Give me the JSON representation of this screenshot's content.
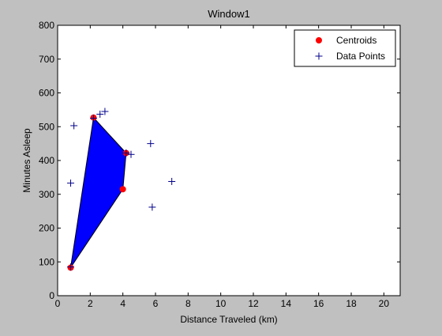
{
  "chart_data": {
    "type": "scatter",
    "title": "Window1",
    "xlabel": "Distance Traveled (km)",
    "ylabel": "Minutes Asleep",
    "xlim": [
      0,
      21
    ],
    "ylim": [
      0,
      800
    ],
    "xticks": [
      0,
      2,
      4,
      6,
      8,
      10,
      12,
      14,
      16,
      18,
      20
    ],
    "yticks": [
      0,
      100,
      200,
      300,
      400,
      500,
      600,
      700,
      800
    ],
    "grid": false,
    "legend_position": "top-right",
    "polygon": {
      "color": "#0000ff",
      "points": [
        [
          0.8,
          83
        ],
        [
          2.2,
          527
        ],
        [
          4.2,
          422
        ],
        [
          4.0,
          315
        ]
      ]
    },
    "series": [
      {
        "name": "Centroids",
        "marker": "circle",
        "color": "#ff0000",
        "points": [
          [
            0.8,
            83
          ],
          [
            2.2,
            527
          ],
          [
            4.2,
            422
          ],
          [
            4.0,
            315
          ]
        ]
      },
      {
        "name": "Data Points",
        "marker": "plus",
        "color": "#00008b",
        "points": [
          [
            0.8,
            85
          ],
          [
            0.8,
            333
          ],
          [
            1.0,
            503
          ],
          [
            2.2,
            525
          ],
          [
            2.6,
            537
          ],
          [
            2.9,
            545
          ],
          [
            4.2,
            422
          ],
          [
            4.5,
            418
          ],
          [
            5.7,
            450
          ],
          [
            5.8,
            262
          ],
          [
            7.0,
            338
          ]
        ]
      }
    ]
  }
}
